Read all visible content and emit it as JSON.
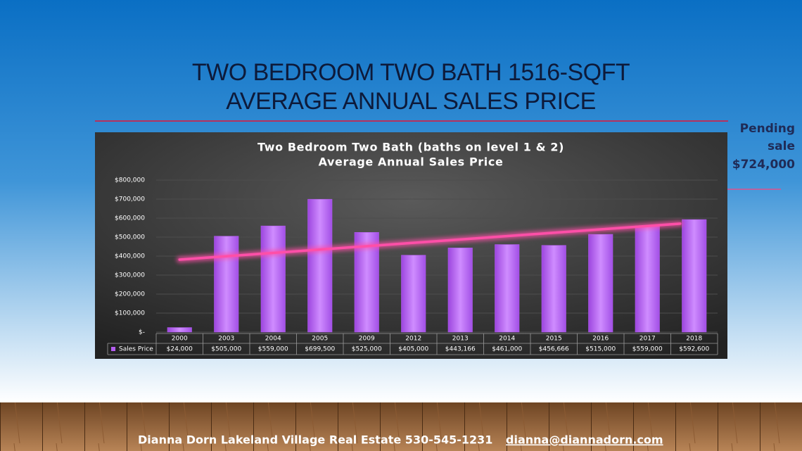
{
  "slide": {
    "title_lines": [
      "TWO BEDROOM TWO BATH 1516-SQFT",
      "AVERAGE ANNUAL SALES PRICE"
    ],
    "side_note": {
      "lines": [
        "Pending",
        "sale",
        "$724,000"
      ]
    },
    "footer": {
      "contact": "Dianna Dorn  Lakeland Village Real Estate  530-545-1231",
      "email": "dianna@diannadorn.com"
    }
  },
  "chart_data": {
    "type": "bar",
    "title_lines": [
      "Two Bedroom Two Bath (baths on level 1 & 2)",
      "Average Annual Sales Price"
    ],
    "categories": [
      "2000",
      "2003",
      "2004",
      "2005",
      "2009",
      "2012",
      "2013",
      "2014",
      "2015",
      "2016",
      "2017",
      "2018"
    ],
    "series": [
      {
        "name": "Sales Price",
        "color": "#b45ef0",
        "values": [
          24000,
          505000,
          559000,
          699500,
          525000,
          405000,
          443166,
          461000,
          456666,
          515000,
          559000,
          592600
        ],
        "value_labels": [
          "$24,000",
          "$505,000",
          "$559,000",
          "$699,500",
          "$525,000",
          "$405,000",
          "$443,166",
          "$461,000",
          "$456,666",
          "$515,000",
          "$559,000",
          "$592,600"
        ]
      }
    ],
    "ylim": [
      0,
      800000
    ],
    "yticks": [
      {
        "value": 0,
        "label": "$-"
      },
      {
        "value": 100000,
        "label": "$100,000"
      },
      {
        "value": 200000,
        "label": "$200,000"
      },
      {
        "value": 300000,
        "label": "$300,000"
      },
      {
        "value": 400000,
        "label": "$400,000"
      },
      {
        "value": 500000,
        "label": "$500,000"
      },
      {
        "value": 600000,
        "label": "$600,000"
      },
      {
        "value": 700000,
        "label": "$700,000"
      },
      {
        "value": 800000,
        "label": "$800,000"
      }
    ],
    "grid": true,
    "trendline": true,
    "trendline_color": "#ff4fa8"
  }
}
